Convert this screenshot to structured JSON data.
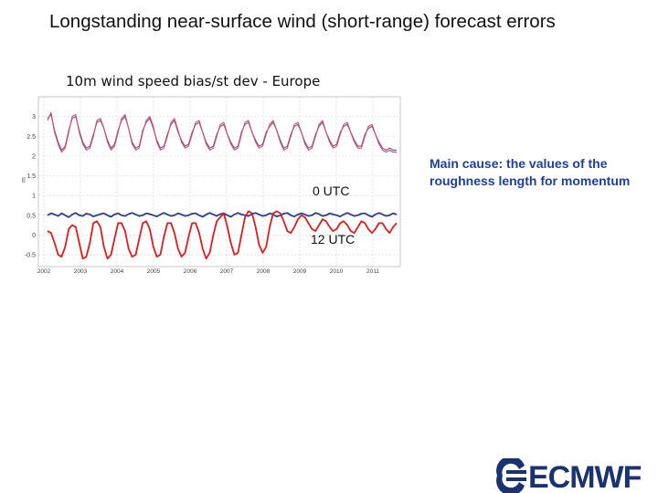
{
  "slide_title": "Longstanding near-surface wind (short-range) forecast errors",
  "note": "Main cause: the values of the roughness length for momentum",
  "logo": {
    "text": "ECMWF",
    "icon": "ecmwf-logo"
  },
  "colors": {
    "utc0": "#2b3f94",
    "utc12": "#d81e1e",
    "stdev_red": "#c8506c",
    "stdev_purple": "#7a4f9a",
    "note": "#1f3f9a",
    "logo": "#1b3270"
  },
  "chart_data": {
    "type": "line",
    "title": "10m wind speed bias/st dev - Europe",
    "ylabel": "m",
    "ylim": [
      -0.8,
      3.5
    ],
    "y_ticks": [
      "-0.5",
      "0",
      "0.5",
      "1",
      "1.5",
      "2",
      "2.5",
      "3"
    ],
    "x_ticks": [
      "2002",
      "2003",
      "2004",
      "2005",
      "2006",
      "2007",
      "2008",
      "2009",
      "2010",
      "2011"
    ],
    "grid": true,
    "annotations": [
      "0 UTC",
      "12 UTC"
    ],
    "series": [
      {
        "name": "0 UTC",
        "role": "bias",
        "values": [
          0.5,
          0.55,
          0.52,
          0.48,
          0.55,
          0.5,
          0.45,
          0.52,
          0.56,
          0.5,
          0.48,
          0.54,
          0.52,
          0.47,
          0.5,
          0.53,
          0.55,
          0.5,
          0.46,
          0.52,
          0.55,
          0.5,
          0.48,
          0.53,
          0.56,
          0.52,
          0.48,
          0.5,
          0.55,
          0.53,
          0.5,
          0.47,
          0.52,
          0.56,
          0.52,
          0.48,
          0.5,
          0.55,
          0.52,
          0.48,
          0.5,
          0.54,
          0.55,
          0.5,
          0.46,
          0.52,
          0.56,
          0.52,
          0.48,
          0.53,
          0.55,
          0.5,
          0.46,
          0.52,
          0.56,
          0.52,
          0.5,
          0.48,
          0.53,
          0.56,
          0.52,
          0.48,
          0.5,
          0.55,
          0.52,
          0.47,
          0.5,
          0.54,
          0.56,
          0.5,
          0.47,
          0.52,
          0.55,
          0.52,
          0.48,
          0.5,
          0.56,
          0.53,
          0.48,
          0.5,
          0.55,
          0.52,
          0.5,
          0.47,
          0.52,
          0.56,
          0.52,
          0.48,
          0.5,
          0.54,
          0.55,
          0.5,
          0.46,
          0.52,
          0.56,
          0.52,
          0.48,
          0.5,
          0.55,
          0.52
        ]
      },
      {
        "name": "12 UTC",
        "role": "bias",
        "values": [
          0.1,
          0.05,
          -0.2,
          -0.5,
          -0.55,
          -0.3,
          0.15,
          0.25,
          0.2,
          -0.2,
          -0.6,
          -0.55,
          -0.2,
          0.3,
          0.35,
          0.2,
          -0.3,
          -0.6,
          -0.5,
          -0.1,
          0.3,
          0.3,
          0.1,
          -0.35,
          -0.55,
          -0.5,
          -0.1,
          0.3,
          0.35,
          0.15,
          -0.3,
          -0.55,
          -0.5,
          -0.05,
          0.3,
          0.3,
          0.05,
          -0.35,
          -0.55,
          -0.45,
          -0.05,
          0.3,
          0.3,
          0.05,
          -0.35,
          -0.6,
          -0.45,
          0.0,
          0.35,
          0.45,
          0.55,
          0.2,
          -0.2,
          -0.5,
          -0.45,
          0.0,
          0.45,
          0.6,
          0.55,
          0.2,
          -0.25,
          -0.45,
          -0.3,
          0.2,
          0.55,
          0.6,
          0.55,
          0.35,
          0.1,
          0.05,
          0.2,
          0.4,
          0.5,
          0.45,
          0.3,
          0.15,
          0.1,
          0.25,
          0.4,
          0.35,
          0.2,
          0.1,
          0.15,
          0.3,
          0.35,
          0.25,
          0.1,
          0.05,
          0.2,
          0.35,
          0.3,
          0.15,
          0.05,
          0.15,
          0.3,
          0.3,
          0.15,
          0.05,
          0.2,
          0.3
        ]
      },
      {
        "name": "0 UTC st dev",
        "role": "st dev",
        "values": [
          2.9,
          3.1,
          2.6,
          2.3,
          2.1,
          2.2,
          2.6,
          3.0,
          3.05,
          2.6,
          2.3,
          2.15,
          2.2,
          2.5,
          2.9,
          2.95,
          2.7,
          2.35,
          2.15,
          2.25,
          2.6,
          2.95,
          3.05,
          2.7,
          2.3,
          2.15,
          2.2,
          2.6,
          2.9,
          3.0,
          2.75,
          2.35,
          2.15,
          2.2,
          2.5,
          2.85,
          2.95,
          2.65,
          2.35,
          2.2,
          2.25,
          2.55,
          2.85,
          2.9,
          2.6,
          2.3,
          2.15,
          2.2,
          2.5,
          2.8,
          2.85,
          2.55,
          2.3,
          2.15,
          2.2,
          2.55,
          2.85,
          2.9,
          2.6,
          2.35,
          2.2,
          2.25,
          2.55,
          2.8,
          2.9,
          2.65,
          2.35,
          2.15,
          2.2,
          2.5,
          2.8,
          2.85,
          2.6,
          2.3,
          2.15,
          2.2,
          2.5,
          2.8,
          2.9,
          2.6,
          2.35,
          2.2,
          2.25,
          2.55,
          2.8,
          2.85,
          2.6,
          2.35,
          2.2,
          2.2,
          2.5,
          2.75,
          2.8,
          2.55,
          2.3,
          2.15,
          2.1,
          2.15,
          2.1,
          2.1
        ]
      },
      {
        "name": "12 UTC st dev",
        "role": "st dev",
        "values": [
          2.95,
          3.05,
          2.65,
          2.35,
          2.15,
          2.25,
          2.65,
          2.95,
          3.0,
          2.65,
          2.35,
          2.2,
          2.25,
          2.55,
          2.85,
          2.9,
          2.7,
          2.4,
          2.2,
          2.3,
          2.65,
          2.9,
          3.0,
          2.7,
          2.35,
          2.2,
          2.25,
          2.65,
          2.85,
          2.95,
          2.7,
          2.4,
          2.2,
          2.25,
          2.55,
          2.8,
          2.9,
          2.6,
          2.4,
          2.25,
          2.3,
          2.6,
          2.8,
          2.85,
          2.6,
          2.35,
          2.2,
          2.25,
          2.55,
          2.75,
          2.8,
          2.55,
          2.35,
          2.2,
          2.25,
          2.6,
          2.8,
          2.85,
          2.6,
          2.4,
          2.25,
          2.3,
          2.6,
          2.75,
          2.85,
          2.65,
          2.4,
          2.2,
          2.25,
          2.55,
          2.75,
          2.8,
          2.6,
          2.35,
          2.2,
          2.25,
          2.55,
          2.75,
          2.85,
          2.6,
          2.4,
          2.25,
          2.3,
          2.6,
          2.75,
          2.8,
          2.6,
          2.4,
          2.25,
          2.25,
          2.55,
          2.7,
          2.75,
          2.55,
          2.35,
          2.2,
          2.15,
          2.2,
          2.15,
          2.15
        ]
      }
    ]
  }
}
